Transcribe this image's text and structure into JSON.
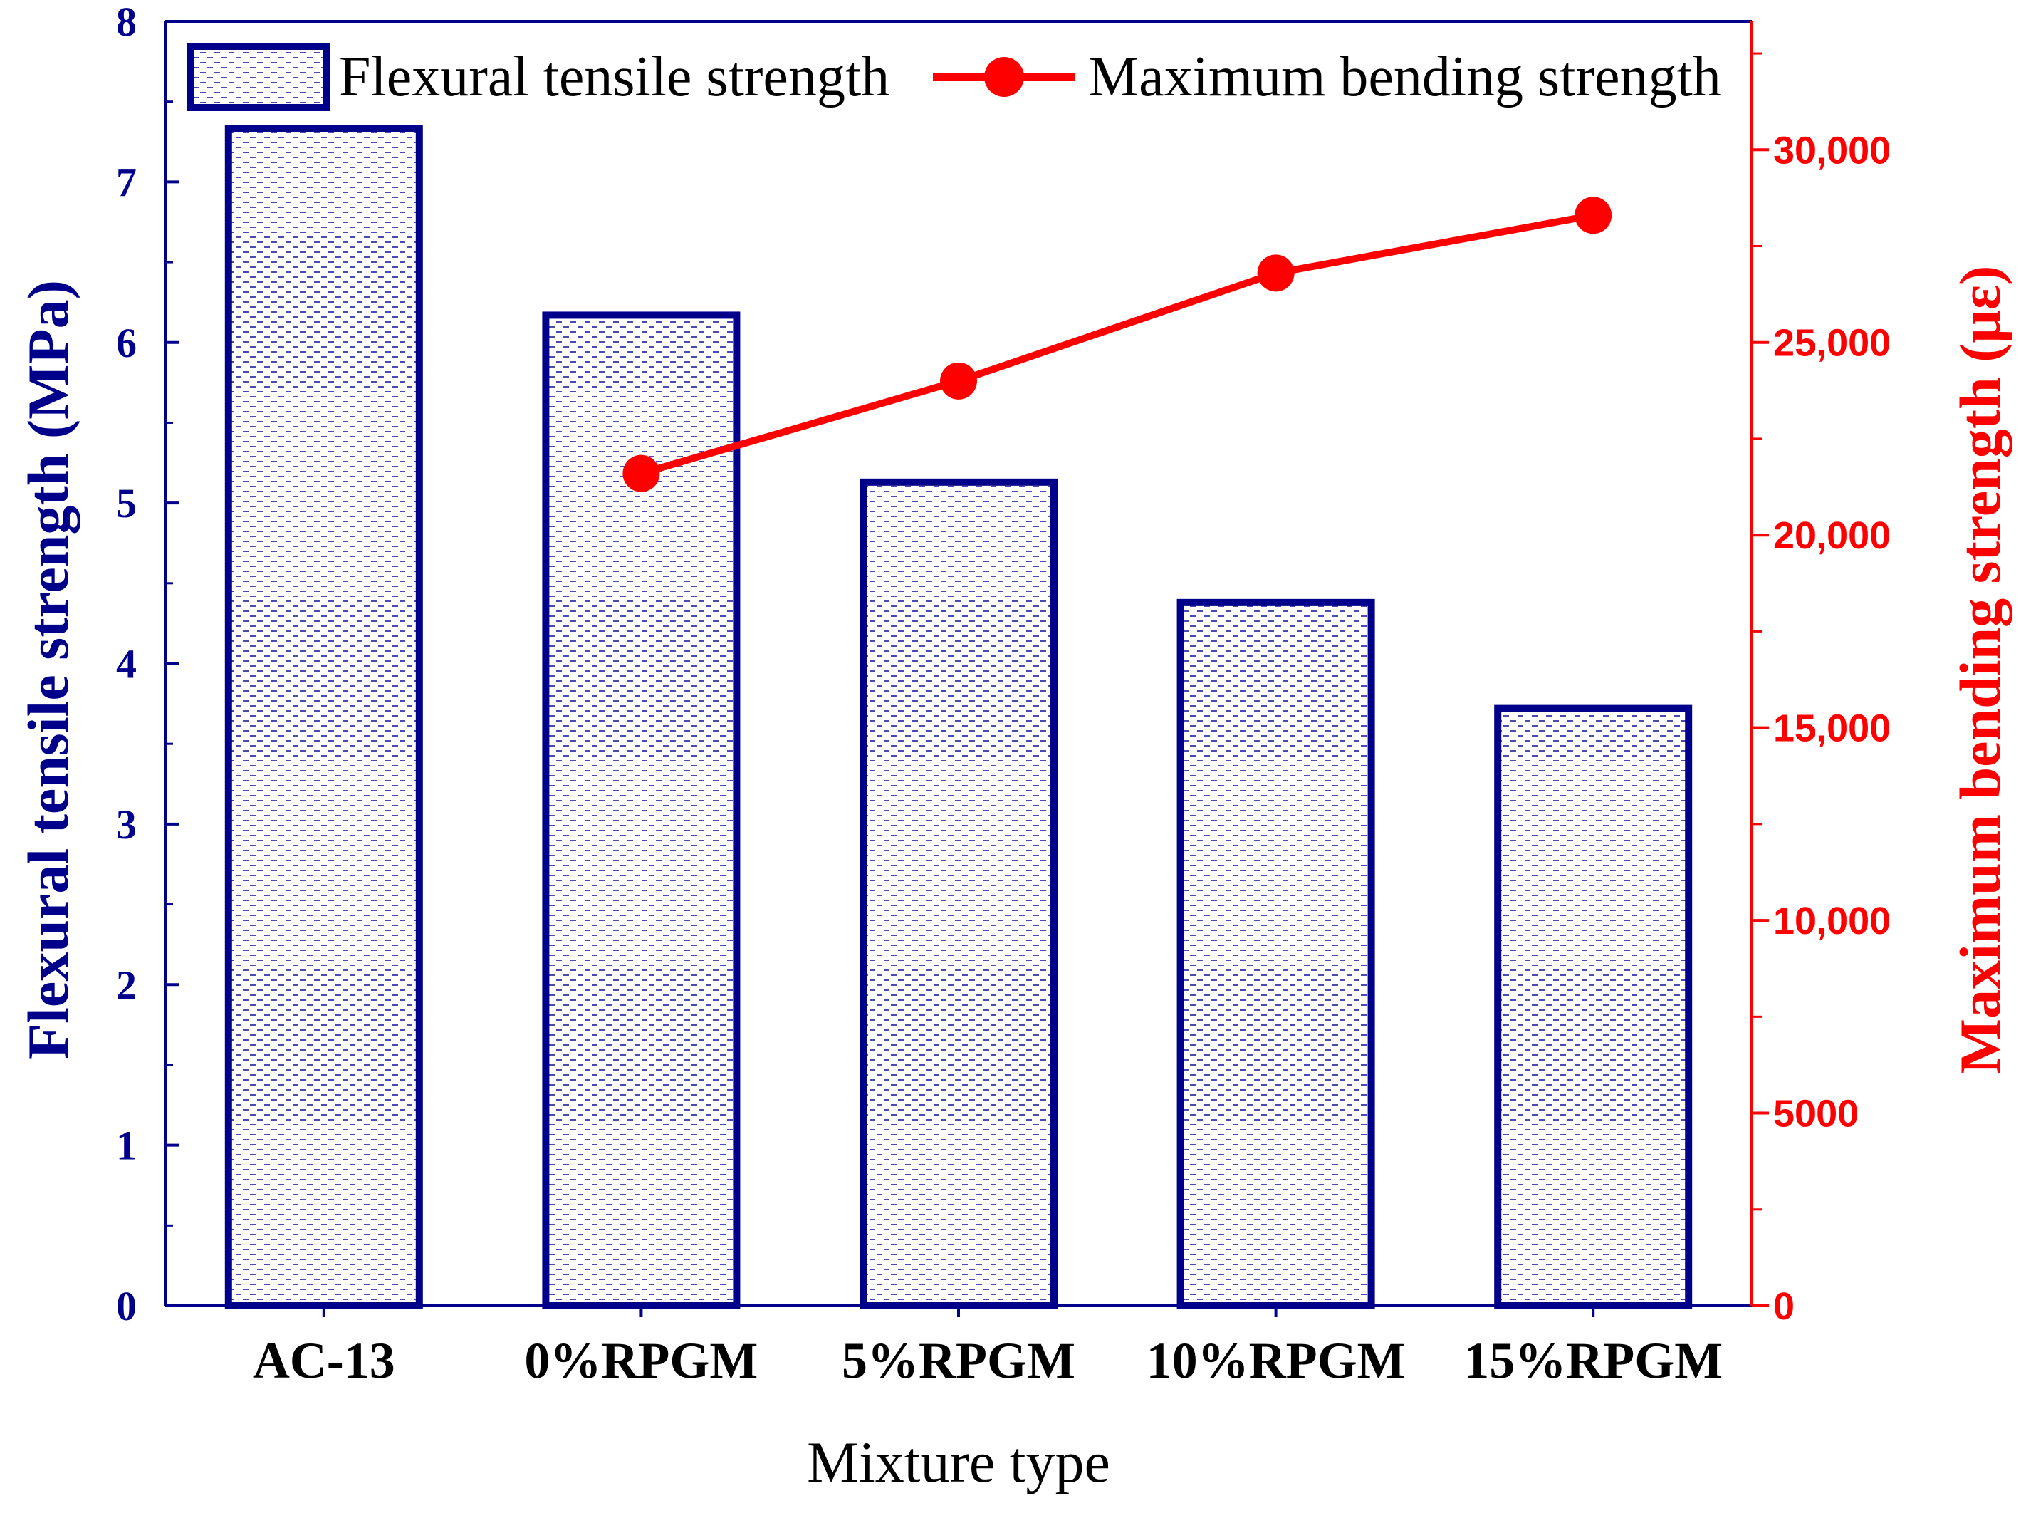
{
  "chart_data": {
    "type": "bar+line",
    "categories": [
      "AC-13",
      "0%RPGM",
      "5%RPGM",
      "10%RPGM",
      "15%RPGM"
    ],
    "series": [
      {
        "name": "Flexural tensile strength",
        "type": "bar",
        "axis": "left",
        "values": [
          7.33,
          6.17,
          5.13,
          4.38,
          3.72
        ],
        "color": "#00008b"
      },
      {
        "name": "Maximum bending strength",
        "type": "line",
        "axis": "right",
        "values": [
          null,
          21600,
          24000,
          26800,
          28300
        ],
        "color": "#ff0000"
      }
    ],
    "xlabel": "Mixture type",
    "ylabel_left": "Flexural tensile strength (MPa)",
    "ylabel_right": "Maximum bending strength (με)",
    "ylim_left": [
      0,
      8
    ],
    "ylim_right": [
      0,
      33333
    ],
    "yticks_left": [
      0,
      1,
      2,
      3,
      4,
      5,
      6,
      7,
      8
    ],
    "yticks_right": [
      0,
      5000,
      10000,
      15000,
      20000,
      25000,
      30000
    ],
    "ytick_labels_left": [
      "0",
      "1",
      "2",
      "3",
      "4",
      "5",
      "6",
      "7",
      "8"
    ],
    "ytick_labels_right": [
      "0",
      "5000",
      "10,000",
      "15,000",
      "20,000",
      "25,000",
      "30,000"
    ],
    "legend": {
      "position": "top",
      "bar_label": "Flexural tensile strength",
      "line_label": "Maximum bending strength"
    },
    "grid": false
  }
}
